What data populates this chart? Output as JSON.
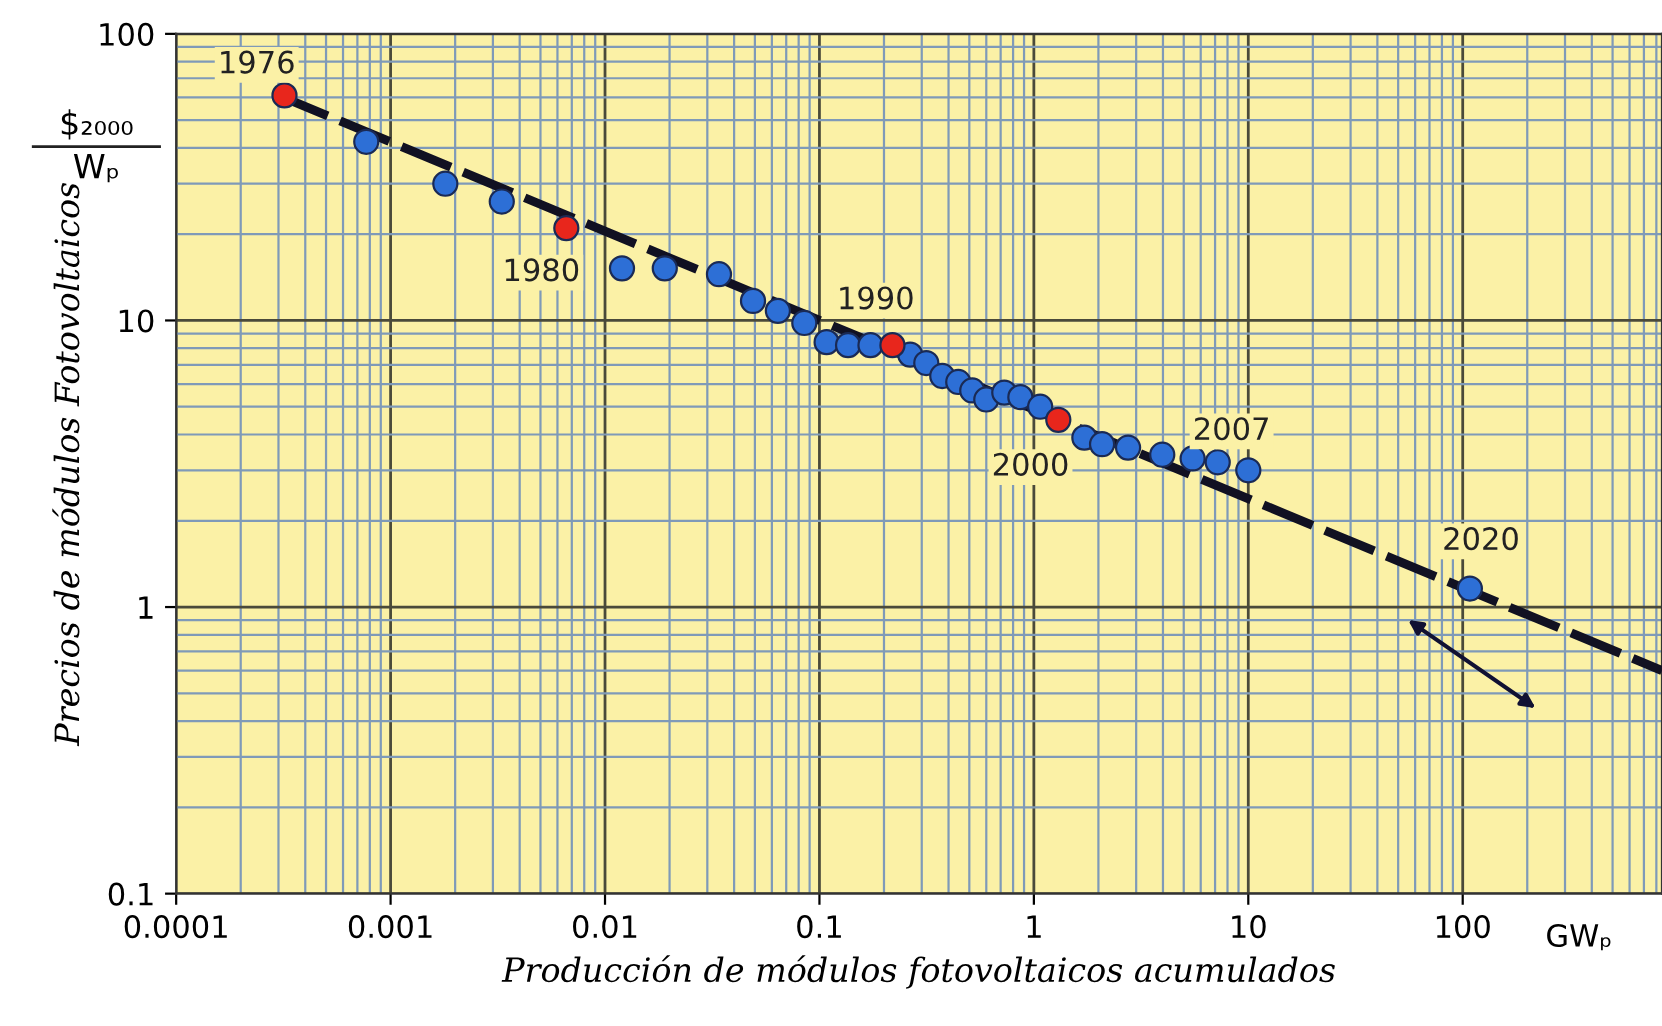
{
  "chart_data": {
    "type": "scatter",
    "xlabel": "Producción de módulos fotovoltaicos acumulados",
    "ylabel": "Precios de módulos Fotovoltaicos",
    "log": "xy",
    "xlim": [
      0.0001,
      850
    ],
    "ylim": [
      0.1,
      100
    ],
    "xticks": [
      0.0001,
      {
        "value": 0.0002,
        "label": null
      },
      {
        "value": 0.0003,
        "label": null
      },
      {
        "value": 0.0004,
        "label": null
      },
      {
        "value": 0.0005,
        "label": null
      },
      {
        "value": 0.0006,
        "label": null
      },
      {
        "value": 0.0007,
        "label": null
      },
      {
        "value": 0.0008,
        "label": null
      },
      {
        "value": 0.0009,
        "label": null
      },
      0.001,
      {
        "value": 0.002,
        "label": null
      },
      {
        "value": 0.003,
        "label": null
      },
      {
        "value": 0.004,
        "label": null
      },
      {
        "value": 0.005,
        "label": null
      },
      {
        "value": 0.006,
        "label": null
      },
      {
        "value": 0.007,
        "label": null
      },
      {
        "value": 0.008,
        "label": null
      },
      {
        "value": 0.009,
        "label": null
      },
      0.01,
      {
        "value": 0.02,
        "label": null
      },
      {
        "value": 0.03,
        "label": null
      },
      {
        "value": 0.04,
        "label": null
      },
      {
        "value": 0.05,
        "label": null
      },
      {
        "value": 0.06,
        "label": null
      },
      {
        "value": 0.07,
        "label": null
      },
      {
        "value": 0.08,
        "label": null
      },
      {
        "value": 0.09,
        "label": null
      },
      0.1,
      {
        "value": 0.2,
        "label": null
      },
      {
        "value": 0.3,
        "label": null
      },
      {
        "value": 0.4,
        "label": null
      },
      {
        "value": 0.5,
        "label": null
      },
      {
        "value": 0.6,
        "label": null
      },
      {
        "value": 0.7,
        "label": null
      },
      {
        "value": 0.8,
        "label": null
      },
      {
        "value": 0.9,
        "label": null
      },
      1,
      {
        "value": 2,
        "label": null
      },
      {
        "value": 3,
        "label": null
      },
      {
        "value": 4,
        "label": null
      },
      {
        "value": 5,
        "label": null
      },
      {
        "value": 6,
        "label": null
      },
      {
        "value": 7,
        "label": null
      },
      {
        "value": 8,
        "label": null
      },
      {
        "value": 9,
        "label": null
      },
      10,
      {
        "value": 20,
        "label": null
      },
      {
        "value": 30,
        "label": null
      },
      {
        "value": 40,
        "label": null
      },
      {
        "value": 50,
        "label": null
      },
      {
        "value": 60,
        "label": null
      },
      {
        "value": 70,
        "label": null
      },
      {
        "value": 80,
        "label": null
      },
      {
        "value": 90,
        "label": null
      },
      100,
      {
        "value": 200,
        "label": null
      },
      {
        "value": 300,
        "label": null
      },
      {
        "value": 400,
        "label": null
      },
      {
        "value": 500,
        "label": null
      },
      {
        "value": 600,
        "label": null
      },
      {
        "value": 700,
        "label": null
      },
      {
        "value": 800,
        "label": null
      }
    ],
    "yticks": [
      0.1,
      {
        "value": 0.2,
        "label": null
      },
      {
        "value": 0.3,
        "label": null
      },
      {
        "value": 0.4,
        "label": null
      },
      {
        "value": 0.5,
        "label": null
      },
      {
        "value": 0.6,
        "label": null
      },
      {
        "value": 0.7,
        "label": null
      },
      {
        "value": 0.8,
        "label": null
      },
      {
        "value": 0.9,
        "label": null
      },
      1,
      {
        "value": 2,
        "label": null
      },
      {
        "value": 3,
        "label": null
      },
      {
        "value": 4,
        "label": null
      },
      {
        "value": 5,
        "label": null
      },
      {
        "value": 6,
        "label": null
      },
      {
        "value": 7,
        "label": null
      },
      {
        "value": 8,
        "label": null
      },
      {
        "value": 9,
        "label": null
      },
      10,
      {
        "value": 20,
        "label": null
      },
      {
        "value": 30,
        "label": null
      },
      {
        "value": 40,
        "label": null
      },
      {
        "value": 50,
        "label": null
      },
      {
        "value": 60,
        "label": null
      },
      {
        "value": 70,
        "label": null
      },
      {
        "value": 80,
        "label": null
      },
      {
        "value": 90,
        "label": null
      },
      100
    ],
    "grid": true,
    "marker": "circle",
    "series": [
      {
        "type": "line",
        "color": "#111122",
        "line_style": "dashed",
        "marker": "none",
        "x": [
          0.0003,
          850
        ],
        "values": [
          61,
          0.6
        ]
      },
      {
        "color": "#2d6fd6",
        "x": [
          0.00077,
          0.0018,
          0.0033,
          0.012,
          0.019,
          0.034,
          0.049,
          0.064,
          0.085,
          0.108,
          0.136,
          0.173,
          0.265,
          0.315,
          0.374,
          0.444,
          0.516,
          0.6,
          0.728,
          0.865,
          1.07,
          1.72,
          2.08,
          2.75,
          3.97,
          5.5,
          7.2,
          10,
          108
        ],
        "values": [
          42,
          30,
          26,
          15.2,
          15.2,
          14.5,
          11.7,
          10.8,
          9.8,
          8.4,
          8.2,
          8.2,
          7.6,
          7.1,
          6.4,
          6.1,
          5.7,
          5.3,
          5.6,
          5.4,
          5.0,
          3.9,
          3.7,
          3.6,
          3.4,
          3.3,
          3.2,
          3.0,
          1.16
        ]
      },
      {
        "color": "#e8261c",
        "x": [
          0.00032,
          0.0066,
          0.219,
          1.3
        ],
        "values": [
          61,
          21,
          8.2,
          4.5
        ]
      }
    ],
    "annotations": [
      {
        "text": "1976",
        "x": 0.00032,
        "y": 61
      },
      {
        "text": "1980",
        "x": 0.0066,
        "y": 21
      },
      {
        "text": "1990",
        "x": 0.219,
        "y": 8.2
      },
      {
        "text": "2000",
        "x": 1.3,
        "y": 4.5
      },
      {
        "text": "2007",
        "x": 10,
        "y": 3.0
      },
      {
        "text": "2020",
        "x": 108,
        "y": 1.16
      },
      "$₂₀₀₀",
      "Wₚ",
      "GWₚ"
    ]
  }
}
